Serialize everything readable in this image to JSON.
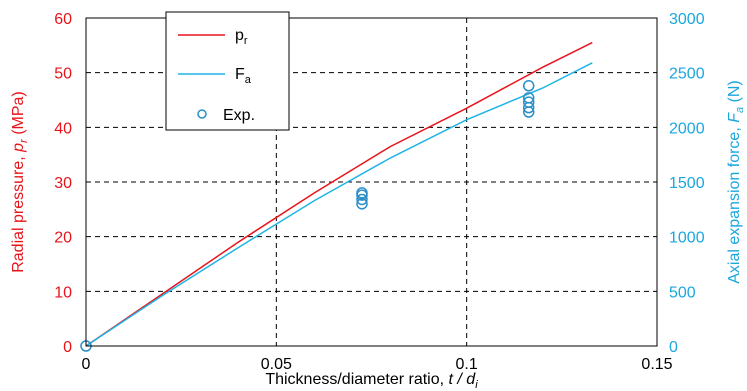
{
  "chart_data": {
    "type": "line",
    "xlabel": "Thickness/diameter ratio, t / d",
    "xlabel_parts": {
      "prefix": "Thickness/diameter ratio, ",
      "var": "t / d",
      "sub": "i"
    },
    "ylabel_left": "Radial pressure, p (MPa)",
    "ylabel_left_parts": {
      "prefix": "Radial pressure, ",
      "var": "p",
      "sub": "r",
      "suffix": " (MPa)"
    },
    "ylabel_right": "Axial expansion force, F (N)",
    "ylabel_right_parts": {
      "prefix": "Axial expansion force, ",
      "var": "F",
      "sub": "a",
      "suffix": " (N)"
    },
    "xlim": [
      0,
      0.15
    ],
    "ylim_left": [
      0,
      60
    ],
    "ylim_right": [
      0,
      3000
    ],
    "x_ticks": [
      "0",
      "0.05",
      "0.1",
      "0.15"
    ],
    "y_left_ticks": [
      "0",
      "10",
      "20",
      "30",
      "40",
      "50",
      "60"
    ],
    "y_right_ticks": [
      "0",
      "500",
      "1000",
      "1500",
      "2000",
      "2500",
      "3000"
    ],
    "grid": true,
    "legend_position": "top-left",
    "colors": {
      "pr": "#e8141b",
      "fa": "#1fb4e6",
      "exp": "#2a8fc9",
      "left_axis": "#e8141b",
      "right_axis": "#1aa7de"
    },
    "series": [
      {
        "name": "pr",
        "legend_label": {
          "main": "p",
          "sub": "r"
        },
        "axis": "left",
        "x": [
          0,
          0.02,
          0.04,
          0.06,
          0.08,
          0.1,
          0.12,
          0.133
        ],
        "y": [
          0,
          9.5,
          19,
          28,
          36.5,
          43.5,
          51,
          55.5
        ]
      },
      {
        "name": "Fa",
        "legend_label": {
          "main": "F",
          "sub": "a"
        },
        "axis": "right",
        "x": [
          0,
          0.02,
          0.04,
          0.06,
          0.08,
          0.1,
          0.12,
          0.133
        ],
        "y": [
          0,
          460,
          900,
          1330,
          1720,
          2070,
          2360,
          2590
        ]
      },
      {
        "name": "Exp.",
        "legend_label": {
          "main": "Exp.",
          "sub": ""
        },
        "axis": "right",
        "markers_only": true,
        "x": [
          0,
          0.0725,
          0.0725,
          0.0725,
          0.0725,
          0.1163,
          0.1163,
          0.1163,
          0.1163,
          0.1163
        ],
        "y": [
          0,
          1300,
          1340,
          1380,
          1400,
          2140,
          2180,
          2230,
          2270,
          2380
        ]
      }
    ]
  }
}
